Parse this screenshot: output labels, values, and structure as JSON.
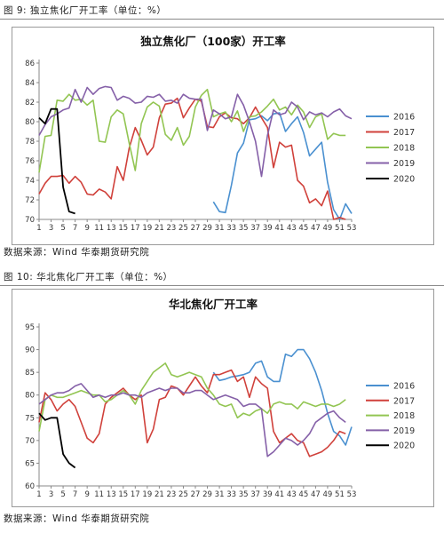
{
  "charts": [
    {
      "caption": "图 9:  独立焦化厂开工率（单位：%）",
      "source": "数据来源：Wind  华泰期货研究院"
    },
    {
      "caption": "图 10:  华北焦化厂开工率（单位：%）",
      "source": "数据来源：Wind  华泰期货研究院"
    }
  ],
  "colors": {
    "2016": "#4A90D0",
    "2017": "#D0413B",
    "2018": "#92C552",
    "2019": "#8560A8",
    "2020": "#000000"
  },
  "chart_data": [
    {
      "type": "line",
      "title": "独立焦化厂（100家）开工率",
      "xlabel": "",
      "ylabel": "",
      "x_ticks": [
        "1",
        "3",
        "5",
        "7",
        "9",
        "11",
        "13",
        "15",
        "17",
        "19",
        "21",
        "23",
        "25",
        "27",
        "29",
        "31",
        "33",
        "35",
        "37",
        "39",
        "41",
        "43",
        "45",
        "47",
        "49",
        "51",
        "53"
      ],
      "xlim": [
        1,
        53
      ],
      "ylim": [
        70,
        86
      ],
      "y_ticks": [
        70,
        72,
        74,
        76,
        78,
        80,
        82,
        84,
        86
      ],
      "grid": false,
      "legend_position": "right",
      "series": [
        {
          "name": "2016",
          "x": [
            30,
            31,
            32,
            33,
            34,
            35,
            36,
            37,
            38,
            39,
            40,
            41,
            42,
            43,
            44,
            45,
            46,
            47,
            48,
            49,
            50,
            51,
            52,
            53
          ],
          "values": [
            71.8,
            70.8,
            70.7,
            73.5,
            76.8,
            77.8,
            80.2,
            80.3,
            80.6,
            80.1,
            80.8,
            80.9,
            79.0,
            79.8,
            80.5,
            78.9,
            76.5,
            77.2,
            77.9,
            73.8,
            71.0,
            69.8,
            71.6,
            70.6
          ]
        },
        {
          "name": "2017",
          "x": [
            1,
            2,
            3,
            4,
            5,
            6,
            7,
            8,
            9,
            10,
            11,
            12,
            13,
            14,
            15,
            16,
            17,
            18,
            19,
            20,
            21,
            22,
            23,
            24,
            25,
            26,
            27,
            28,
            29,
            30,
            31,
            32,
            33,
            34,
            35,
            36,
            37,
            38,
            39,
            40,
            41,
            42,
            43,
            44,
            45,
            46,
            47,
            48,
            49,
            50,
            51,
            52
          ],
          "values": [
            72.6,
            73.7,
            74.4,
            74.4,
            74.5,
            73.7,
            74.4,
            73.8,
            72.6,
            72.5,
            73.1,
            72.8,
            72.1,
            75.4,
            74.0,
            77.3,
            79.4,
            78.1,
            76.6,
            77.4,
            80.4,
            81.8,
            81.9,
            82.4,
            80.4,
            81.4,
            82.3,
            82.1,
            79.5,
            79.4,
            80.5,
            80.9,
            80.4,
            80.3,
            79.8,
            80.4,
            81.5,
            80.4,
            79.4,
            75.3,
            77.9,
            77.4,
            77.6,
            74.0,
            73.4,
            71.7,
            72.1,
            71.4,
            72.9,
            70.0,
            70.2,
            69.8
          ]
        },
        {
          "name": "2018",
          "x": [
            1,
            2,
            3,
            4,
            5,
            6,
            7,
            8,
            9,
            10,
            11,
            12,
            13,
            14,
            15,
            16,
            17,
            18,
            19,
            20,
            21,
            22,
            23,
            24,
            25,
            26,
            27,
            28,
            29,
            30,
            31,
            32,
            33,
            34,
            35,
            36,
            37,
            38,
            39,
            40,
            41,
            42,
            43,
            44,
            45,
            46,
            47,
            48,
            49,
            50,
            51,
            52
          ],
          "values": [
            74.8,
            78.5,
            78.6,
            82.2,
            82.1,
            82.8,
            82.2,
            82.3,
            81.7,
            82.2,
            78.0,
            77.9,
            80.5,
            81.2,
            80.8,
            77.8,
            75.0,
            79.8,
            81.5,
            82.0,
            81.6,
            78.7,
            78.1,
            79.4,
            77.6,
            78.5,
            81.5,
            82.7,
            83.3,
            80.5,
            80.8,
            81.0,
            80.0,
            81.1,
            79.0,
            80.5,
            80.6,
            81.0,
            81.6,
            82.3,
            81.2,
            81.5,
            80.7,
            81.7,
            81.0,
            79.4,
            80.5,
            80.8,
            78.2,
            78.8,
            78.6,
            78.6
          ]
        },
        {
          "name": "2019",
          "x": [
            1,
            2,
            3,
            4,
            5,
            6,
            7,
            8,
            9,
            10,
            11,
            12,
            13,
            14,
            15,
            16,
            17,
            18,
            19,
            20,
            21,
            22,
            23,
            24,
            25,
            26,
            27,
            28,
            29,
            30,
            31,
            32,
            33,
            34,
            35,
            36,
            37,
            38,
            39,
            40,
            41,
            42,
            43,
            44,
            45,
            46,
            47,
            48,
            49,
            50,
            51,
            52,
            53
          ],
          "values": [
            78.6,
            79.7,
            80.5,
            80.8,
            81.2,
            81.4,
            83.3,
            82.0,
            83.5,
            82.8,
            83.4,
            83.6,
            83.5,
            82.2,
            82.6,
            82.4,
            81.9,
            82.0,
            82.6,
            82.5,
            82.8,
            82.1,
            82.2,
            81.9,
            82.8,
            82.4,
            82.3,
            82.3,
            79.1,
            81.2,
            80.8,
            80.3,
            80.5,
            82.8,
            81.7,
            80.0,
            78.0,
            74.4,
            78.6,
            81.2,
            80.7,
            80.9,
            82.0,
            81.5,
            80.2,
            81.0,
            80.7,
            80.9,
            80.5,
            81.0,
            81.3,
            80.6,
            80.3
          ]
        },
        {
          "name": "2020",
          "x": [
            1,
            2,
            3,
            4,
            5,
            6,
            7
          ],
          "values": [
            80.4,
            79.8,
            81.3,
            81.3,
            73.3,
            70.8,
            70.6
          ]
        }
      ]
    },
    {
      "type": "line",
      "title": "华北焦化厂开工率",
      "xlabel": "",
      "ylabel": "",
      "x_ticks": [
        "1",
        "3",
        "5",
        "7",
        "9",
        "11",
        "13",
        "15",
        "17",
        "19",
        "21",
        "23",
        "25",
        "27",
        "29",
        "31",
        "33",
        "35",
        "37",
        "39",
        "41",
        "43",
        "45",
        "47",
        "49",
        "51",
        "53"
      ],
      "xlim": [
        1,
        53
      ],
      "ylim": [
        60,
        95
      ],
      "y_ticks": [
        60,
        65,
        70,
        75,
        80,
        85,
        90,
        95
      ],
      "grid": false,
      "legend_position": "right",
      "series": [
        {
          "name": "2016",
          "x": [
            30,
            31,
            32,
            33,
            34,
            35,
            36,
            37,
            38,
            39,
            40,
            41,
            42,
            43,
            44,
            45,
            46,
            47,
            48,
            49,
            50,
            51,
            52,
            53
          ],
          "values": [
            85.0,
            83.2,
            83.5,
            84.0,
            84.2,
            84.5,
            85.0,
            87.0,
            87.5,
            84.0,
            83.0,
            83.0,
            89.0,
            88.5,
            90.0,
            90.0,
            88.0,
            85.0,
            81.0,
            76.0,
            72.0,
            71.0,
            69.0,
            73.0
          ]
        },
        {
          "name": "2017",
          "x": [
            1,
            2,
            3,
            4,
            5,
            6,
            7,
            8,
            9,
            10,
            11,
            12,
            13,
            14,
            15,
            16,
            17,
            18,
            19,
            20,
            21,
            22,
            23,
            24,
            25,
            26,
            27,
            28,
            29,
            30,
            31,
            32,
            33,
            34,
            35,
            36,
            37,
            38,
            39,
            40,
            41,
            42,
            43,
            44,
            45,
            46,
            47,
            48,
            49,
            50,
            51,
            52
          ],
          "values": [
            74.0,
            80.5,
            79.0,
            76.5,
            78.0,
            79.0,
            77.5,
            74.0,
            70.5,
            69.5,
            71.5,
            78.0,
            79.5,
            80.5,
            81.5,
            80.0,
            79.0,
            80.0,
            69.5,
            72.5,
            79.0,
            79.5,
            82.0,
            81.5,
            80.0,
            82.0,
            84.0,
            82.0,
            80.5,
            84.5,
            84.5,
            85.0,
            85.5,
            83.0,
            84.0,
            79.5,
            84.0,
            82.5,
            81.5,
            72.0,
            69.5,
            70.5,
            71.5,
            70.0,
            69.5,
            66.5,
            67.0,
            67.5,
            68.5,
            70.0,
            72.0,
            71.5
          ]
        },
        {
          "name": "2018",
          "x": [
            1,
            2,
            3,
            4,
            5,
            6,
            7,
            8,
            9,
            10,
            11,
            12,
            13,
            14,
            15,
            16,
            17,
            18,
            19,
            20,
            21,
            22,
            23,
            24,
            25,
            26,
            27,
            28,
            29,
            30,
            31,
            32,
            33,
            34,
            35,
            36,
            37,
            38,
            39,
            40,
            41,
            42,
            43,
            44,
            45,
            46,
            47,
            48,
            49,
            50,
            51,
            52
          ],
          "values": [
            72.0,
            79.0,
            80.0,
            79.5,
            79.5,
            80.0,
            80.5,
            81.0,
            80.5,
            80.0,
            80.0,
            78.5,
            79.0,
            80.0,
            81.0,
            80.0,
            78.0,
            81.0,
            83.0,
            85.0,
            86.0,
            87.0,
            84.5,
            84.0,
            84.5,
            85.0,
            84.5,
            84.0,
            81.5,
            80.0,
            78.0,
            77.5,
            78.0,
            75.0,
            76.0,
            75.5,
            76.5,
            77.0,
            76.0,
            78.0,
            78.5,
            78.0,
            78.0,
            77.0,
            78.5,
            78.0,
            77.5,
            78.0,
            78.0,
            77.5,
            78.0,
            79.0
          ]
        },
        {
          "name": "2019",
          "x": [
            1,
            2,
            3,
            4,
            5,
            6,
            7,
            8,
            9,
            10,
            11,
            12,
            13,
            14,
            15,
            16,
            17,
            18,
            19,
            20,
            21,
            22,
            23,
            24,
            25,
            26,
            27,
            28,
            29,
            30,
            31,
            32,
            33,
            34,
            35,
            36,
            37,
            38,
            39,
            40,
            41,
            42,
            43,
            44,
            45,
            46,
            47,
            48,
            49,
            50,
            51,
            52
          ],
          "values": [
            78.0,
            79.0,
            80.0,
            80.5,
            80.5,
            81.0,
            82.0,
            82.5,
            81.0,
            79.5,
            80.0,
            79.5,
            80.0,
            80.0,
            80.5,
            80.0,
            80.0,
            79.5,
            80.5,
            81.0,
            81.5,
            81.0,
            81.5,
            81.5,
            80.5,
            80.5,
            81.0,
            81.0,
            80.0,
            79.0,
            79.5,
            80.0,
            79.5,
            79.0,
            77.5,
            78.0,
            78.0,
            77.0,
            66.5,
            67.5,
            69.0,
            70.5,
            70.0,
            69.0,
            70.0,
            71.5,
            74.0,
            75.0,
            76.0,
            76.5,
            75.0,
            74.0
          ]
        },
        {
          "name": "2020",
          "x": [
            1,
            2,
            3,
            4,
            5,
            6,
            7
          ],
          "values": [
            76.0,
            74.5,
            75.0,
            75.0,
            67.0,
            65.0,
            64.0
          ]
        }
      ]
    }
  ]
}
